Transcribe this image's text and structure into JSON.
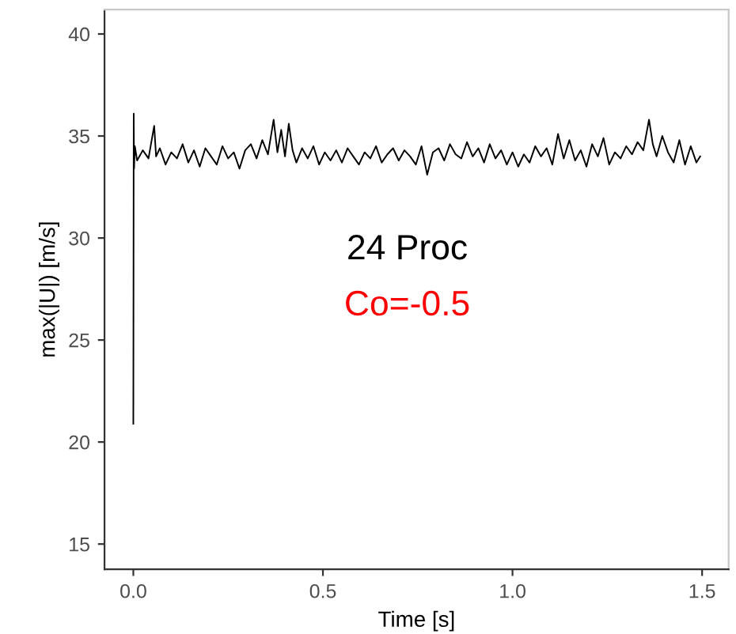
{
  "chart_data": {
    "type": "line",
    "xlabel": "Time [s]",
    "ylabel": "max(|U|) [m/s]",
    "x": [
      0,
      0.001,
      0.002,
      0.004,
      0.01,
      0.025,
      0.04,
      0.055,
      0.06,
      0.07,
      0.085,
      0.1,
      0.115,
      0.13,
      0.145,
      0.16,
      0.175,
      0.19,
      0.205,
      0.22,
      0.235,
      0.25,
      0.265,
      0.28,
      0.295,
      0.31,
      0.325,
      0.34,
      0.355,
      0.37,
      0.38,
      0.39,
      0.4,
      0.41,
      0.42,
      0.43,
      0.445,
      0.46,
      0.475,
      0.49,
      0.505,
      0.52,
      0.535,
      0.55,
      0.565,
      0.58,
      0.595,
      0.61,
      0.625,
      0.64,
      0.655,
      0.67,
      0.685,
      0.7,
      0.715,
      0.73,
      0.745,
      0.76,
      0.775,
      0.79,
      0.805,
      0.82,
      0.835,
      0.85,
      0.865,
      0.88,
      0.895,
      0.91,
      0.925,
      0.94,
      0.955,
      0.97,
      0.985,
      1.0,
      1.015,
      1.03,
      1.045,
      1.06,
      1.075,
      1.09,
      1.105,
      1.12,
      1.135,
      1.15,
      1.165,
      1.18,
      1.195,
      1.21,
      1.225,
      1.24,
      1.255,
      1.27,
      1.285,
      1.3,
      1.315,
      1.33,
      1.345,
      1.36,
      1.37,
      1.38,
      1.395,
      1.41,
      1.425,
      1.44,
      1.455,
      1.47,
      1.485,
      1.495
    ],
    "values": [
      20.9,
      36.1,
      33.4,
      34.5,
      33.8,
      34.3,
      33.9,
      35.5,
      34.0,
      34.4,
      33.6,
      34.2,
      33.9,
      34.6,
      33.7,
      34.3,
      33.5,
      34.4,
      34.0,
      33.6,
      34.5,
      33.9,
      34.2,
      33.4,
      34.3,
      34.6,
      33.9,
      34.8,
      34.1,
      35.8,
      34.2,
      35.3,
      34.0,
      35.6,
      34.3,
      33.7,
      34.4,
      33.9,
      34.5,
      33.6,
      34.2,
      33.8,
      34.3,
      33.7,
      34.4,
      34.0,
      33.6,
      34.2,
      33.9,
      34.5,
      33.7,
      34.1,
      34.4,
      33.8,
      34.3,
      34.0,
      33.6,
      34.5,
      33.1,
      34.2,
      34.4,
      33.8,
      34.6,
      34.1,
      33.9,
      34.7,
      34.0,
      34.4,
      33.7,
      34.6,
      33.9,
      34.3,
      33.6,
      34.2,
      33.5,
      34.1,
      33.7,
      34.5,
      34.0,
      34.4,
      33.6,
      35.1,
      33.9,
      34.8,
      33.8,
      34.3,
      33.5,
      34.6,
      34.0,
      34.9,
      33.6,
      34.2,
      33.9,
      34.5,
      34.1,
      34.7,
      34.3,
      35.8,
      34.6,
      34.0,
      35.0,
      34.2,
      33.7,
      34.8,
      33.6,
      34.5,
      33.7,
      34.0
    ],
    "color": "#000000",
    "xlim": [
      -0.076,
      1.57
    ],
    "xticks": [
      {
        "value": 0,
        "label": "0.0"
      },
      0.5,
      {
        "value": 1,
        "label": "1.0"
      },
      1.5
    ],
    "ylim": [
      13.76,
      41.2
    ],
    "yticks": [
      15,
      20,
      25,
      30,
      35,
      40
    ],
    "grid": false,
    "annotations": [
      "24 Proc",
      "Co=-0.5"
    ]
  }
}
